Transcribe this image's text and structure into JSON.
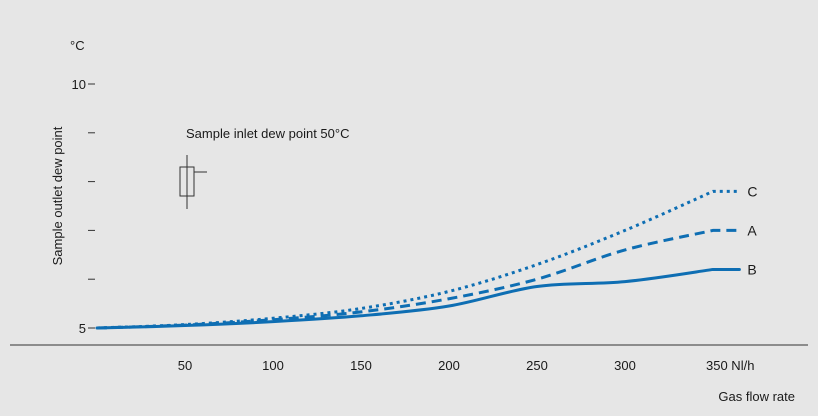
{
  "chart_data": {
    "type": "line",
    "y_unit": "°C",
    "ylabel": "Sample outlet dew point",
    "xlabel": "Gas flow rate",
    "annotation": "Sample inlet dew point 50°C",
    "x_ticks": [
      {
        "value": 50,
        "label": "50"
      },
      {
        "value": 100,
        "label": "100"
      },
      {
        "value": 150,
        "label": "150"
      },
      {
        "value": 200,
        "label": "200"
      },
      {
        "value": 250,
        "label": "250"
      },
      {
        "value": 300,
        "label": "300"
      },
      {
        "value": 350,
        "label": "350 Nl/h"
      }
    ],
    "y_ticks": [
      {
        "value": 5,
        "label": "5"
      },
      {
        "value": 6,
        "label": ""
      },
      {
        "value": 7,
        "label": ""
      },
      {
        "value": 8,
        "label": ""
      },
      {
        "value": 9,
        "label": ""
      },
      {
        "value": 10,
        "label": "10"
      }
    ],
    "xlim": [
      0,
      370
    ],
    "ylim": [
      5,
      10
    ],
    "series": [
      {
        "name": "C",
        "style": "dotted",
        "x": [
          0,
          50,
          100,
          150,
          200,
          250,
          300,
          350,
          365
        ],
        "y": [
          5.0,
          5.07,
          5.2,
          5.4,
          5.75,
          6.3,
          7.0,
          7.8,
          7.8
        ]
      },
      {
        "name": "A",
        "style": "dashed",
        "x": [
          0,
          50,
          100,
          150,
          200,
          250,
          300,
          350,
          365
        ],
        "y": [
          5.0,
          5.06,
          5.17,
          5.33,
          5.6,
          6.0,
          6.6,
          7.0,
          7.0
        ]
      },
      {
        "name": "B",
        "style": "solid",
        "x": [
          0,
          50,
          100,
          150,
          200,
          250,
          300,
          350,
          365
        ],
        "y": [
          5.0,
          5.05,
          5.13,
          5.25,
          5.45,
          5.85,
          6.45,
          6.2,
          6.2
        ]
      }
    ],
    "colors": {
      "line": "#0e6eb3",
      "background": "#e6e6e6",
      "axis": "#333333"
    }
  }
}
